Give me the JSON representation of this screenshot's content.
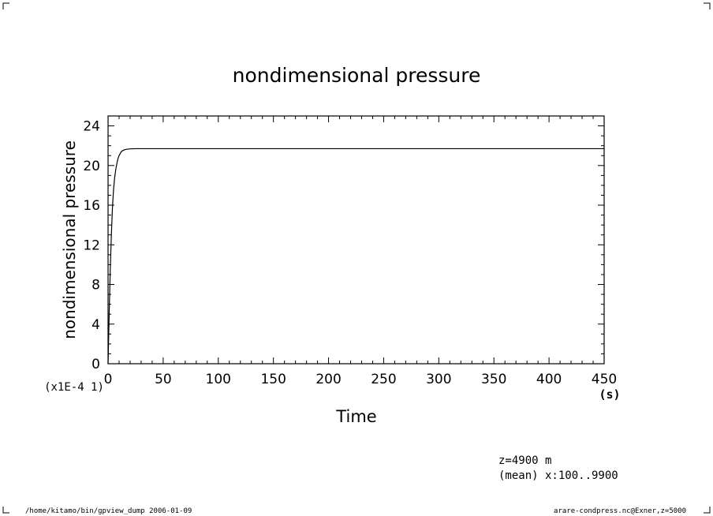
{
  "chart_data": {
    "type": "line",
    "title": "nondimensional pressure",
    "xlabel": "Time",
    "ylabel": "nondimensional pressure",
    "x_unit": "(s)",
    "y_scale_note": "(x1E-4 1)",
    "xlim": [
      0,
      450
    ],
    "ylim": [
      0,
      25
    ],
    "x_ticks": [
      0,
      50,
      100,
      150,
      200,
      250,
      300,
      350,
      400,
      450
    ],
    "y_ticks": [
      0,
      4,
      8,
      12,
      16,
      20,
      24
    ],
    "grid": false,
    "series": [
      {
        "x": [
          0,
          1,
          2,
          3,
          4,
          5,
          6,
          7,
          8,
          9,
          10,
          12,
          14,
          16,
          18,
          20,
          25,
          30,
          40,
          60,
          100,
          200,
          300,
          400,
          450
        ],
        "y": [
          0,
          5.0,
          9.5,
          13.0,
          15.8,
          17.6,
          18.8,
          19.6,
          20.2,
          20.7,
          21.0,
          21.4,
          21.55,
          21.62,
          21.66,
          21.68,
          21.7,
          21.7,
          21.7,
          21.7,
          21.7,
          21.7,
          21.7,
          21.7,
          21.7
        ]
      }
    ],
    "info_lines": [
      "z=4900  m",
      "(mean) x:100..9900"
    ]
  },
  "footer": {
    "left": "/home/kitamo/bin/gpview_dump  2006-01-09",
    "right": "arare-condpress.nc@Exner,z=5000"
  }
}
